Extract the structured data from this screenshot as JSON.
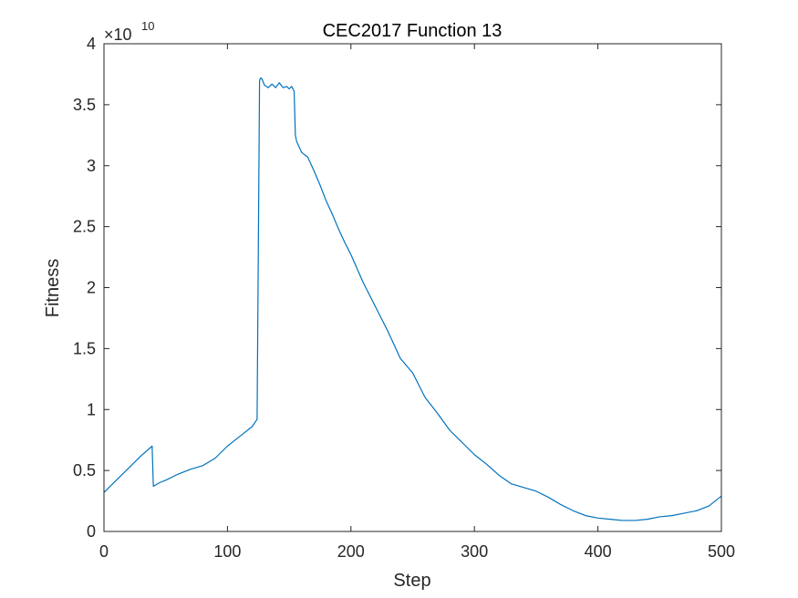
{
  "chart_data": {
    "type": "line",
    "title": "CEC2017 Function 13",
    "xlabel": "Step",
    "ylabel": "Fitness",
    "y_exponent_prefix": "×10",
    "y_exponent_power": "10",
    "xlim": [
      0,
      500
    ],
    "ylim": [
      0,
      4
    ],
    "xticks": [
      "0",
      "100",
      "200",
      "300",
      "400",
      "500"
    ],
    "yticks": [
      "0",
      "0.5",
      "1",
      "1.5",
      "2",
      "2.5",
      "3",
      "3.5",
      "4"
    ],
    "xtick_values": [
      0,
      100,
      200,
      300,
      400,
      500
    ],
    "ytick_values": [
      0,
      0.5,
      1,
      1.5,
      2,
      2.5,
      3,
      3.5,
      4
    ],
    "grid": false,
    "line_color": "#0072bd",
    "series": [
      {
        "x": [
          0,
          10,
          20,
          30,
          39,
          40,
          45,
          50,
          60,
          70,
          80,
          85,
          90,
          100,
          110,
          120,
          124,
          126,
          127,
          128,
          130,
          133,
          136,
          139,
          142,
          145,
          148,
          150,
          152,
          153,
          154,
          155,
          156,
          160,
          165,
          170,
          175,
          180,
          185,
          190,
          195,
          200,
          210,
          220,
          230,
          240,
          250,
          260,
          270,
          280,
          290,
          300,
          310,
          320,
          330,
          340,
          350,
          360,
          370,
          380,
          390,
          400,
          410,
          420,
          430,
          440,
          450,
          460,
          470,
          480,
          490,
          500
        ],
        "y": [
          0.32,
          0.42,
          0.52,
          0.62,
          0.7,
          0.37,
          0.4,
          0.42,
          0.47,
          0.51,
          0.54,
          0.57,
          0.6,
          0.7,
          0.78,
          0.86,
          0.92,
          3.7,
          3.72,
          3.71,
          3.66,
          3.64,
          3.67,
          3.64,
          3.68,
          3.64,
          3.65,
          3.63,
          3.65,
          3.63,
          3.61,
          3.25,
          3.2,
          3.11,
          3.07,
          2.96,
          2.84,
          2.71,
          2.6,
          2.48,
          2.37,
          2.27,
          2.04,
          1.84,
          1.64,
          1.42,
          1.3,
          1.1,
          0.97,
          0.83,
          0.73,
          0.63,
          0.55,
          0.46,
          0.39,
          0.36,
          0.33,
          0.28,
          0.22,
          0.17,
          0.13,
          0.11,
          0.1,
          0.09,
          0.09,
          0.1,
          0.12,
          0.13,
          0.15,
          0.17,
          0.21,
          0.29
        ]
      }
    ]
  }
}
